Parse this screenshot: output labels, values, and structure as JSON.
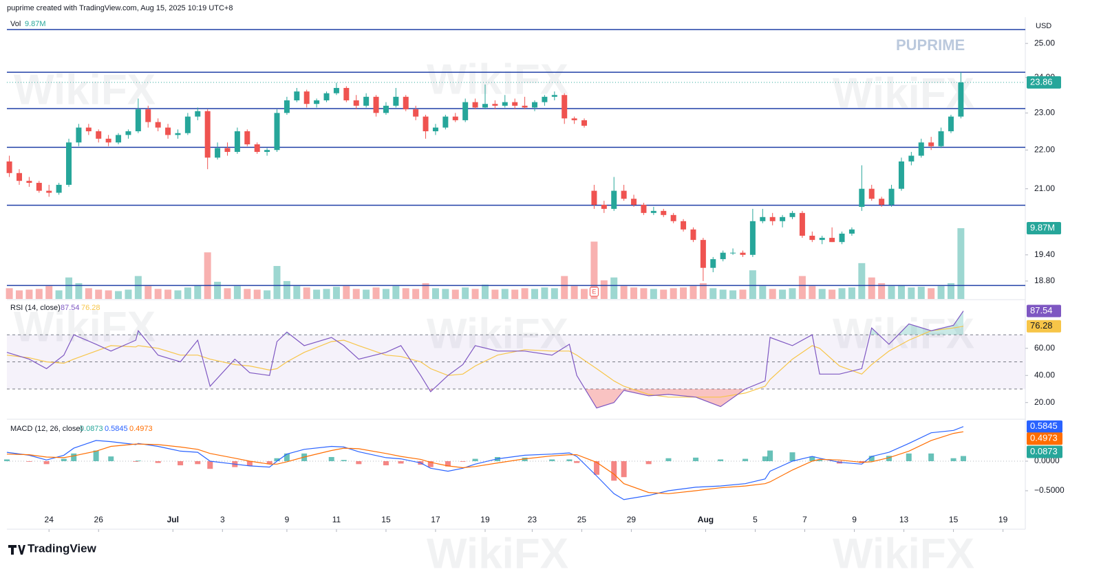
{
  "header": "puprime created with TradingView.com, Aug 15, 2025 10:19 UTC+8",
  "branding": "TradingView",
  "watermarks": {
    "broker": "PUPRIME",
    "site": "WikiFX"
  },
  "chart_data": [
    {
      "type": "candlestick",
      "currency": "USD",
      "log_scale": true,
      "up_color": "#26a69a",
      "down_color": "#ef5350",
      "x": [
        -1.6,
        -1.2,
        -0.8,
        -0.4,
        0,
        0.4,
        0.8,
        1.2,
        1.6,
        2,
        2.4,
        2.8,
        3.2,
        3.6,
        4,
        4.4,
        4.8,
        5.2,
        5.6,
        6,
        6.4,
        6.8,
        7.2,
        7.6,
        8,
        8.4,
        8.8,
        9.2,
        9.6,
        10,
        10.4,
        10.8,
        11.2,
        11.6,
        12,
        12.4,
        12.8,
        13.2,
        13.6,
        14,
        14.4,
        14.8,
        15.2,
        15.6,
        16,
        16.4,
        16.8,
        17.2,
        17.6,
        18,
        18.4,
        18.8,
        19.2,
        19.6,
        20,
        20.4,
        20.8,
        21.2,
        21.6,
        22,
        22.4,
        22.8,
        23.2,
        23.6,
        24,
        24.4,
        24.8,
        25.2,
        25.6,
        26,
        26.4,
        26.8,
        27.2,
        27.6,
        28,
        28.4,
        28.8,
        29.2,
        29.6,
        30,
        30.4,
        30.8,
        31.2,
        31.6,
        32,
        32.4,
        32.8,
        33.2,
        33.6,
        34,
        34.4,
        34.8,
        35.2,
        35.6,
        36,
        36.4,
        36.8
      ],
      "open": [
        21.7,
        21.4,
        21.2,
        21.15,
        20.95,
        20.9,
        21.1,
        22.2,
        22.6,
        22.5,
        22.3,
        22.2,
        22.4,
        22.5,
        23.1,
        22.75,
        22.6,
        22.4,
        22.45,
        22.9,
        23.05,
        21.8,
        22.05,
        21.95,
        22.5,
        22.15,
        21.95,
        22.0,
        23.0,
        23.35,
        23.6,
        23.25,
        23.35,
        23.55,
        23.7,
        23.35,
        23.2,
        23.45,
        23.0,
        23.2,
        23.45,
        23.1,
        22.9,
        22.5,
        22.6,
        22.9,
        22.8,
        23.3,
        23.15,
        23.25,
        23.2,
        23.3,
        23.2,
        23.15,
        23.3,
        23.45,
        23.5,
        22.85,
        22.8,
        20.95,
        20.6,
        20.5,
        20.95,
        20.75,
        20.6,
        20.4,
        20.45,
        20.35,
        20.2,
        20.0,
        19.75,
        19.1,
        19.3,
        19.45,
        19.45,
        19.4,
        20.2,
        20.3,
        20.2,
        20.3,
        20.4,
        19.85,
        19.75,
        19.8,
        19.7,
        19.9,
        20.55,
        21.0,
        20.75,
        20.6,
        21.0,
        21.7,
        21.85,
        22.2,
        22.1,
        22.5,
        22.9
      ],
      "high": [
        21.85,
        21.5,
        21.3,
        21.2,
        21.1,
        21.15,
        22.3,
        22.7,
        22.7,
        22.55,
        22.4,
        22.45,
        22.55,
        23.4,
        23.2,
        22.85,
        22.7,
        22.55,
        23.0,
        23.15,
        23.1,
        22.2,
        22.2,
        22.6,
        22.55,
        22.2,
        22.05,
        23.1,
        23.45,
        23.7,
        23.65,
        23.4,
        23.6,
        23.85,
        23.75,
        23.5,
        23.55,
        23.5,
        23.3,
        23.7,
        23.5,
        23.2,
        22.95,
        22.7,
        22.95,
        23.0,
        23.4,
        23.4,
        23.8,
        23.35,
        23.5,
        23.4,
        23.45,
        23.35,
        23.5,
        23.6,
        23.55,
        22.9,
        22.85,
        21.1,
        20.7,
        21.3,
        21.1,
        20.85,
        20.65,
        20.55,
        20.5,
        20.4,
        20.25,
        20.05,
        19.8,
        19.35,
        19.5,
        19.55,
        19.5,
        20.5,
        20.5,
        20.4,
        20.35,
        20.45,
        20.45,
        19.95,
        19.85,
        20.05,
        19.95,
        20.05,
        21.6,
        21.1,
        20.8,
        21.1,
        21.8,
        21.95,
        22.3,
        22.35,
        22.6,
        22.95,
        24.15
      ],
      "low": [
        21.3,
        21.1,
        21.05,
        20.9,
        20.8,
        20.85,
        21.05,
        22.1,
        22.4,
        22.2,
        22.1,
        22.15,
        22.3,
        22.45,
        22.6,
        22.5,
        22.3,
        22.3,
        22.4,
        22.8,
        21.5,
        21.75,
        21.85,
        21.9,
        22.1,
        21.9,
        21.85,
        21.95,
        22.95,
        23.3,
        23.15,
        23.15,
        23.3,
        23.5,
        23.3,
        23.1,
        23.15,
        22.9,
        22.95,
        23.15,
        23.05,
        22.8,
        22.3,
        22.4,
        22.55,
        22.75,
        22.75,
        23.1,
        23.1,
        23.1,
        23.15,
        23.1,
        23.1,
        23.05,
        23.2,
        23.35,
        22.7,
        22.7,
        22.6,
        20.5,
        20.4,
        20.45,
        20.7,
        20.55,
        20.35,
        20.35,
        20.3,
        20.15,
        19.95,
        19.7,
        18.8,
        19.0,
        19.25,
        19.4,
        19.35,
        19.35,
        20.15,
        20.1,
        20.05,
        20.25,
        19.8,
        19.7,
        19.65,
        19.7,
        19.65,
        19.85,
        20.45,
        20.7,
        20.55,
        20.55,
        20.95,
        21.6,
        21.8,
        22.0,
        22.05,
        22.45,
        22.85
      ],
      "close": [
        21.4,
        21.2,
        21.15,
        20.95,
        20.9,
        21.1,
        22.2,
        22.6,
        22.5,
        22.3,
        22.2,
        22.4,
        22.5,
        23.1,
        22.75,
        22.6,
        22.4,
        22.45,
        22.9,
        23.05,
        21.8,
        22.05,
        21.95,
        22.5,
        22.15,
        21.95,
        22.0,
        23.0,
        23.35,
        23.6,
        23.25,
        23.35,
        23.55,
        23.7,
        23.35,
        23.2,
        23.45,
        23.0,
        23.2,
        23.45,
        23.1,
        22.9,
        22.5,
        22.6,
        22.9,
        22.8,
        23.3,
        23.15,
        23.25,
        23.2,
        23.3,
        23.2,
        23.15,
        23.3,
        23.45,
        23.5,
        22.85,
        22.8,
        22.65,
        20.6,
        20.5,
        20.95,
        20.75,
        20.6,
        20.4,
        20.45,
        20.35,
        20.2,
        20.0,
        19.75,
        19.1,
        19.3,
        19.45,
        19.45,
        19.4,
        20.2,
        20.3,
        20.2,
        20.3,
        20.4,
        19.85,
        19.75,
        19.8,
        19.7,
        19.9,
        20.0,
        21.0,
        20.75,
        20.6,
        21.0,
        21.7,
        21.85,
        22.2,
        22.1,
        22.5,
        22.9,
        23.86
      ],
      "xlim": [
        -1.7,
        39.4
      ],
      "xticks": [
        {
          "value": 0,
          "label": "24"
        },
        {
          "value": 2,
          "label": "26"
        },
        {
          "value": 5,
          "label": "Jul"
        },
        {
          "value": 7,
          "label": "3"
        },
        {
          "value": 9.6,
          "label": "9"
        },
        {
          "value": 11.6,
          "label": "11"
        },
        {
          "value": 13.6,
          "label": "15"
        },
        {
          "value": 15.6,
          "label": "17"
        },
        {
          "value": 17.6,
          "label": "19"
        },
        {
          "value": 19.5,
          "label": "23"
        },
        {
          "value": 21.5,
          "label": "25"
        },
        {
          "value": 23.5,
          "label": "29"
        },
        {
          "value": 26.5,
          "label": "Aug"
        },
        {
          "value": 28.5,
          "label": "5"
        },
        {
          "value": 30.5,
          "label": "7"
        },
        {
          "value": 32.5,
          "label": "9"
        },
        {
          "value": 34.5,
          "label": "13"
        },
        {
          "value": 36.5,
          "label": "15"
        },
        {
          "value": 38.5,
          "label": "19"
        }
      ],
      "ylim": [
        18.4,
        25.8
      ],
      "yticks": [
        {
          "value": 25,
          "label": "25.00"
        },
        {
          "value": 24,
          "label": "24.00"
        },
        {
          "value": 23,
          "label": "23.00"
        },
        {
          "value": 22,
          "label": "22.00"
        },
        {
          "value": 21,
          "label": "21.00"
        },
        {
          "value": 19.4,
          "label": "19.40"
        },
        {
          "value": 18.8,
          "label": "18.80"
        }
      ],
      "levels": {
        "color": "#1f3fa6",
        "values": [
          25.42,
          24.15,
          23.12,
          22.07,
          20.59,
          18.7
        ]
      },
      "event_marker": "E",
      "volume": {
        "name": "Vol",
        "ylim": [
          0,
          39.3
        ],
        "values": [
          1.5,
          1.2,
          1.3,
          1.4,
          1.8,
          1.2,
          3.0,
          2.2,
          1.5,
          1.3,
          1.2,
          1.1,
          1.3,
          3.2,
          1.8,
          1.4,
          1.3,
          1.2,
          1.6,
          1.9,
          6.5,
          2.4,
          1.5,
          1.8,
          1.4,
          1.3,
          1.2,
          4.6,
          2.5,
          1.8,
          1.6,
          1.3,
          1.4,
          1.7,
          1.8,
          1.4,
          1.3,
          1.6,
          1.4,
          1.8,
          1.5,
          1.4,
          2.2,
          1.5,
          1.4,
          1.3,
          1.6,
          1.4,
          2.0,
          1.3,
          1.4,
          1.3,
          1.5,
          1.4,
          1.6,
          1.5,
          3.2,
          1.8,
          1.4,
          8.0,
          2.6,
          3.0,
          1.8,
          1.6,
          1.5,
          1.4,
          1.3,
          1.5,
          1.6,
          1.8,
          2.2,
          1.5,
          1.3,
          1.2,
          1.3,
          4.0,
          1.8,
          1.4,
          1.3,
          1.5,
          3.2,
          1.8,
          1.4,
          1.3,
          1.5,
          1.6,
          5.0,
          3.0,
          2.2,
          1.8,
          1.9,
          1.6,
          1.7,
          1.5,
          1.8,
          2.2,
          9.87
        ],
        "value_labels": {
          "96": "9.87M"
        }
      }
    },
    {
      "type": "line",
      "title": "RSI (14, close)",
      "x": [
        -1.7,
        -0.8,
        -0.1,
        0.6,
        1,
        1.9,
        2.5,
        3.5,
        3.6,
        4.4,
        5.3,
        6,
        6.5,
        7.5,
        8.1,
        8.9,
        9.2,
        9.6,
        10.3,
        11.4,
        11.9,
        12.5,
        13.6,
        14.2,
        15,
        15.4,
        16.1,
        16.7,
        17.2,
        18.1,
        19.2,
        20.3,
        21,
        21.3,
        22.1,
        22.8,
        23.2,
        24.2,
        25,
        26.1,
        27.1,
        28.1,
        28.9,
        29.1,
        30,
        30.8,
        31.1,
        31.9,
        32.8,
        33.2,
        33.9,
        34.7,
        35.6,
        36.5,
        36.9
      ],
      "series": [
        {
          "color": "#7e57c2",
          "values": [
            57,
            52,
            45,
            55,
            70,
            63,
            58,
            66,
            73,
            55,
            50,
            66,
            32,
            52,
            42,
            40,
            65,
            72,
            62,
            68,
            62,
            52,
            57,
            62,
            40,
            28,
            40,
            48,
            62,
            58,
            58,
            55,
            63,
            40,
            16,
            20,
            29,
            25,
            26,
            24,
            17,
            30,
            36,
            68,
            62,
            70,
            41,
            41,
            45,
            75,
            63,
            78,
            73,
            77,
            87.54
          ]
        },
        {
          "color": "#f7c548",
          "values": [
            55,
            53,
            50,
            49,
            52,
            58,
            62,
            61,
            62,
            60,
            55,
            55,
            52,
            48,
            47,
            44,
            45,
            50,
            57,
            65,
            66,
            62,
            55,
            54,
            50,
            45,
            40,
            41,
            47,
            55,
            59,
            58,
            58,
            55,
            45,
            36,
            32,
            26,
            24,
            24,
            24,
            27,
            32,
            37,
            52,
            62,
            60,
            47,
            41,
            48,
            58,
            66,
            73,
            75,
            76.28
          ]
        }
      ],
      "guides": [
        70,
        50,
        30
      ],
      "ylim": [
        8.7,
        95.4
      ],
      "yticks": [
        {
          "value": 60,
          "label": "60.00"
        },
        {
          "value": 40,
          "label": "40.00"
        },
        {
          "value": 20,
          "label": "20.00"
        }
      ]
    },
    {
      "type": "macd",
      "title": "MACD (12, 26, close)",
      "x": [
        -1.7,
        -0.8,
        -0.1,
        0.6,
        1,
        1.9,
        2.5,
        3.5,
        3.6,
        4.4,
        5.3,
        6,
        6.5,
        7.5,
        8.1,
        8.9,
        9.2,
        9.6,
        10.3,
        11.4,
        11.9,
        12.5,
        13.6,
        14.2,
        15,
        15.4,
        16.1,
        16.7,
        17.2,
        18.1,
        19.2,
        20.3,
        21,
        21.3,
        22.1,
        22.8,
        23.2,
        24.2,
        25,
        26.1,
        27.1,
        28.1,
        28.9,
        29.1,
        30,
        30.8,
        31.1,
        31.9,
        32.8,
        33.2,
        33.9,
        34.7,
        35.6,
        36.5,
        36.9
      ],
      "series": [
        {
          "color": "#26a69a",
          "negative_color": "#ef5350",
          "values": [
            0.03,
            -0.01,
            -0.05,
            0.04,
            0.13,
            0.18,
            0.08,
            -0.01,
            0.01,
            -0.03,
            -0.07,
            -0.05,
            -0.13,
            -0.1,
            -0.08,
            -0.05,
            0.05,
            0.13,
            0.13,
            0.07,
            0.02,
            -0.05,
            -0.07,
            -0.04,
            -0.06,
            -0.1,
            -0.09,
            -0.01,
            0.04,
            0.07,
            0.06,
            0.03,
            0.03,
            -0.03,
            -0.23,
            -0.33,
            -0.27,
            -0.05,
            0.05,
            0.06,
            0.03,
            0.04,
            0.08,
            0.18,
            0.15,
            0.08,
            0.02,
            -0.04,
            -0.03,
            0.09,
            0.09,
            0.13,
            0.13,
            0.05,
            0.0873
          ]
        },
        {
          "color": "#2962ff",
          "values": [
            0.15,
            0.1,
            0.02,
            0.1,
            0.22,
            0.35,
            0.33,
            0.28,
            0.3,
            0.25,
            0.17,
            0.15,
            0.0,
            -0.05,
            -0.08,
            -0.1,
            0.0,
            0.12,
            0.2,
            0.25,
            0.24,
            0.16,
            0.06,
            0.04,
            -0.03,
            -0.12,
            -0.17,
            -0.12,
            -0.05,
            0.04,
            0.1,
            0.12,
            0.14,
            0.08,
            -0.25,
            -0.55,
            -0.65,
            -0.58,
            -0.5,
            -0.44,
            -0.42,
            -0.38,
            -0.3,
            -0.17,
            0.0,
            0.08,
            0.05,
            -0.02,
            -0.05,
            0.08,
            0.15,
            0.3,
            0.48,
            0.52,
            0.5845
          ]
        },
        {
          "color": "#ff6d00",
          "values": [
            0.12,
            0.11,
            0.07,
            0.06,
            0.09,
            0.17,
            0.25,
            0.29,
            0.29,
            0.28,
            0.24,
            0.2,
            0.13,
            0.05,
            0.0,
            -0.05,
            -0.05,
            -0.01,
            0.07,
            0.18,
            0.22,
            0.21,
            0.13,
            0.08,
            0.03,
            -0.02,
            -0.08,
            -0.11,
            -0.09,
            -0.03,
            0.04,
            0.09,
            0.11,
            0.11,
            -0.02,
            -0.22,
            -0.38,
            -0.53,
            -0.55,
            -0.5,
            -0.45,
            -0.42,
            -0.38,
            -0.35,
            -0.15,
            0.0,
            0.03,
            0.02,
            -0.02,
            -0.01,
            0.06,
            0.17,
            0.35,
            0.47,
            0.4973
          ]
        }
      ],
      "ylim": [
        -0.86,
        0.686
      ],
      "yticks": [
        {
          "value": 0,
          "label": "0.0000"
        },
        {
          "value": -0.5,
          "label": "−0.5000"
        }
      ]
    }
  ]
}
